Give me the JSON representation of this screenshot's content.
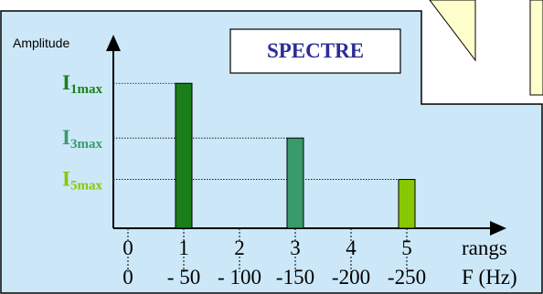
{
  "colors": {
    "panel": "#cce8f8",
    "note": "#ffffcc",
    "frame": "#000000",
    "title": "#2b2b99",
    "harmonic_1": "#1a7f1a",
    "harmonic_3": "#3a9a6a",
    "harmonic_5": "#88c800"
  },
  "chart_data": {
    "type": "bar",
    "title": "SPECTRE",
    "ylabel": "Amplitude",
    "ylim": [
      0,
      1
    ],
    "x_ticks": [
      "0",
      "1",
      "2",
      "3",
      "4",
      "5"
    ],
    "x_label": "rangs",
    "freq_ticks": [
      "0",
      "- 50",
      "- 100",
      "-150",
      "-200",
      "-250"
    ],
    "freq_label": "F (Hz)",
    "series": [
      {
        "x": 1,
        "value": 0.98,
        "label": {
          "main": "I",
          "sub": "1max"
        },
        "color_key": "harmonic_1"
      },
      {
        "x": 3,
        "value": 0.61,
        "label": {
          "main": "I",
          "sub": "3max"
        },
        "color_key": "harmonic_3"
      },
      {
        "x": 5,
        "value": 0.33,
        "label": {
          "main": "I",
          "sub": "5max"
        },
        "color_key": "harmonic_5"
      }
    ]
  }
}
